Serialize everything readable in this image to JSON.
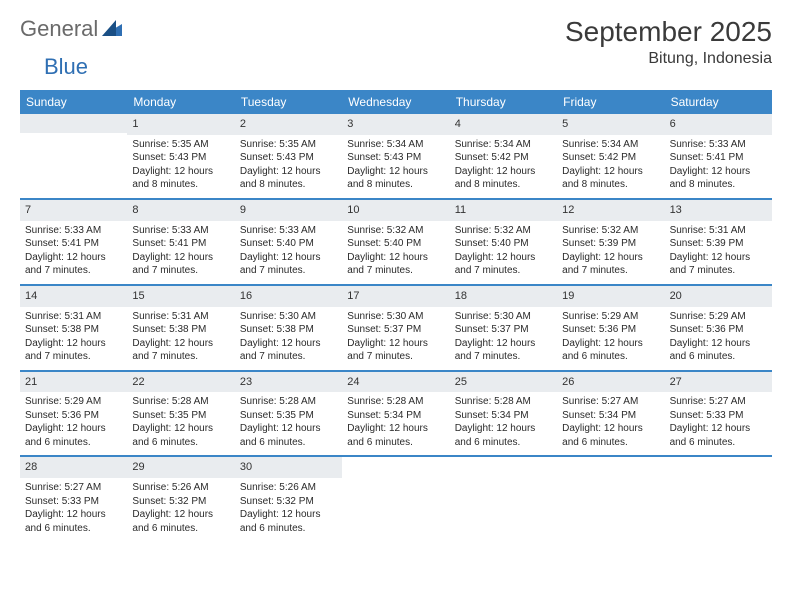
{
  "logo": {
    "text1": "General",
    "text2": "Blue"
  },
  "title": "September 2025",
  "location": "Bitung, Indonesia",
  "colors": {
    "header_bg": "#3b86c7",
    "daynum_bg": "#e9ecef",
    "text": "#2a2a2a",
    "logo_gray": "#6a6a6a",
    "logo_blue": "#2f6fb3",
    "row_border": "#3b86c7"
  },
  "day_names": [
    "Sunday",
    "Monday",
    "Tuesday",
    "Wednesday",
    "Thursday",
    "Friday",
    "Saturday"
  ],
  "weeks": [
    [
      {
        "empty": true
      },
      {
        "num": "1",
        "sunrise": "Sunrise: 5:35 AM",
        "sunset": "Sunset: 5:43 PM",
        "daylight": "Daylight: 12 hours and 8 minutes."
      },
      {
        "num": "2",
        "sunrise": "Sunrise: 5:35 AM",
        "sunset": "Sunset: 5:43 PM",
        "daylight": "Daylight: 12 hours and 8 minutes."
      },
      {
        "num": "3",
        "sunrise": "Sunrise: 5:34 AM",
        "sunset": "Sunset: 5:43 PM",
        "daylight": "Daylight: 12 hours and 8 minutes."
      },
      {
        "num": "4",
        "sunrise": "Sunrise: 5:34 AM",
        "sunset": "Sunset: 5:42 PM",
        "daylight": "Daylight: 12 hours and 8 minutes."
      },
      {
        "num": "5",
        "sunrise": "Sunrise: 5:34 AM",
        "sunset": "Sunset: 5:42 PM",
        "daylight": "Daylight: 12 hours and 8 minutes."
      },
      {
        "num": "6",
        "sunrise": "Sunrise: 5:33 AM",
        "sunset": "Sunset: 5:41 PM",
        "daylight": "Daylight: 12 hours and 8 minutes."
      }
    ],
    [
      {
        "num": "7",
        "sunrise": "Sunrise: 5:33 AM",
        "sunset": "Sunset: 5:41 PM",
        "daylight": "Daylight: 12 hours and 7 minutes."
      },
      {
        "num": "8",
        "sunrise": "Sunrise: 5:33 AM",
        "sunset": "Sunset: 5:41 PM",
        "daylight": "Daylight: 12 hours and 7 minutes."
      },
      {
        "num": "9",
        "sunrise": "Sunrise: 5:33 AM",
        "sunset": "Sunset: 5:40 PM",
        "daylight": "Daylight: 12 hours and 7 minutes."
      },
      {
        "num": "10",
        "sunrise": "Sunrise: 5:32 AM",
        "sunset": "Sunset: 5:40 PM",
        "daylight": "Daylight: 12 hours and 7 minutes."
      },
      {
        "num": "11",
        "sunrise": "Sunrise: 5:32 AM",
        "sunset": "Sunset: 5:40 PM",
        "daylight": "Daylight: 12 hours and 7 minutes."
      },
      {
        "num": "12",
        "sunrise": "Sunrise: 5:32 AM",
        "sunset": "Sunset: 5:39 PM",
        "daylight": "Daylight: 12 hours and 7 minutes."
      },
      {
        "num": "13",
        "sunrise": "Sunrise: 5:31 AM",
        "sunset": "Sunset: 5:39 PM",
        "daylight": "Daylight: 12 hours and 7 minutes."
      }
    ],
    [
      {
        "num": "14",
        "sunrise": "Sunrise: 5:31 AM",
        "sunset": "Sunset: 5:38 PM",
        "daylight": "Daylight: 12 hours and 7 minutes."
      },
      {
        "num": "15",
        "sunrise": "Sunrise: 5:31 AM",
        "sunset": "Sunset: 5:38 PM",
        "daylight": "Daylight: 12 hours and 7 minutes."
      },
      {
        "num": "16",
        "sunrise": "Sunrise: 5:30 AM",
        "sunset": "Sunset: 5:38 PM",
        "daylight": "Daylight: 12 hours and 7 minutes."
      },
      {
        "num": "17",
        "sunrise": "Sunrise: 5:30 AM",
        "sunset": "Sunset: 5:37 PM",
        "daylight": "Daylight: 12 hours and 7 minutes."
      },
      {
        "num": "18",
        "sunrise": "Sunrise: 5:30 AM",
        "sunset": "Sunset: 5:37 PM",
        "daylight": "Daylight: 12 hours and 7 minutes."
      },
      {
        "num": "19",
        "sunrise": "Sunrise: 5:29 AM",
        "sunset": "Sunset: 5:36 PM",
        "daylight": "Daylight: 12 hours and 6 minutes."
      },
      {
        "num": "20",
        "sunrise": "Sunrise: 5:29 AM",
        "sunset": "Sunset: 5:36 PM",
        "daylight": "Daylight: 12 hours and 6 minutes."
      }
    ],
    [
      {
        "num": "21",
        "sunrise": "Sunrise: 5:29 AM",
        "sunset": "Sunset: 5:36 PM",
        "daylight": "Daylight: 12 hours and 6 minutes."
      },
      {
        "num": "22",
        "sunrise": "Sunrise: 5:28 AM",
        "sunset": "Sunset: 5:35 PM",
        "daylight": "Daylight: 12 hours and 6 minutes."
      },
      {
        "num": "23",
        "sunrise": "Sunrise: 5:28 AM",
        "sunset": "Sunset: 5:35 PM",
        "daylight": "Daylight: 12 hours and 6 minutes."
      },
      {
        "num": "24",
        "sunrise": "Sunrise: 5:28 AM",
        "sunset": "Sunset: 5:34 PM",
        "daylight": "Daylight: 12 hours and 6 minutes."
      },
      {
        "num": "25",
        "sunrise": "Sunrise: 5:28 AM",
        "sunset": "Sunset: 5:34 PM",
        "daylight": "Daylight: 12 hours and 6 minutes."
      },
      {
        "num": "26",
        "sunrise": "Sunrise: 5:27 AM",
        "sunset": "Sunset: 5:34 PM",
        "daylight": "Daylight: 12 hours and 6 minutes."
      },
      {
        "num": "27",
        "sunrise": "Sunrise: 5:27 AM",
        "sunset": "Sunset: 5:33 PM",
        "daylight": "Daylight: 12 hours and 6 minutes."
      }
    ],
    [
      {
        "num": "28",
        "sunrise": "Sunrise: 5:27 AM",
        "sunset": "Sunset: 5:33 PM",
        "daylight": "Daylight: 12 hours and 6 minutes."
      },
      {
        "num": "29",
        "sunrise": "Sunrise: 5:26 AM",
        "sunset": "Sunset: 5:32 PM",
        "daylight": "Daylight: 12 hours and 6 minutes."
      },
      {
        "num": "30",
        "sunrise": "Sunrise: 5:26 AM",
        "sunset": "Sunset: 5:32 PM",
        "daylight": "Daylight: 12 hours and 6 minutes."
      },
      {
        "empty": true
      },
      {
        "empty": true
      },
      {
        "empty": true
      },
      {
        "empty": true
      }
    ]
  ]
}
